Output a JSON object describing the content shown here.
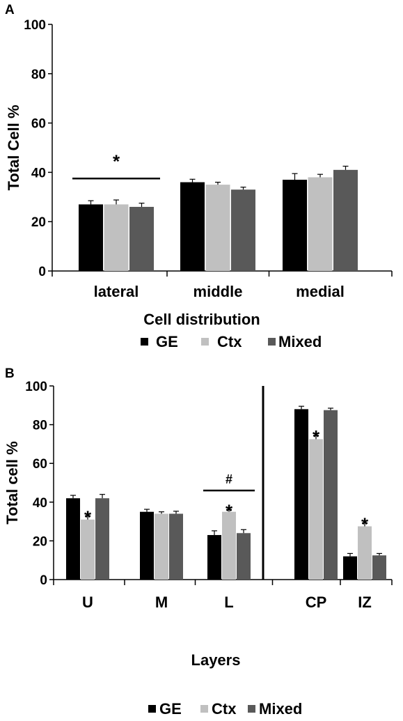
{
  "colors": {
    "GE": "#000000",
    "Ctx": "#c0c0c0",
    "Mixed": "#595959"
  },
  "chart_data": [
    {
      "type": "bar",
      "panel_label": "A",
      "categories": [
        "lateral",
        "middle",
        "medial"
      ],
      "series": [
        {
          "name": "GE",
          "values": [
            27,
            36,
            37
          ],
          "errors": [
            1.5,
            1.2,
            2.5
          ]
        },
        {
          "name": "Ctx",
          "values": [
            27,
            35,
            38
          ],
          "errors": [
            1.8,
            1.0,
            1.2
          ]
        },
        {
          "name": "Mixed",
          "values": [
            26,
            33,
            41
          ],
          "errors": [
            1.5,
            1.0,
            1.5
          ]
        }
      ],
      "ylabel": "Total Cell %",
      "xlabel": "Cell distribution",
      "ylim": [
        0,
        100
      ],
      "yticks": [
        0,
        20,
        40,
        60,
        80,
        100
      ],
      "legend": {
        "position": "bottom",
        "entries": [
          "GE",
          "Ctx",
          "Mixed"
        ]
      },
      "grid": false,
      "annotations": [
        {
          "text": "*",
          "category": "lateral",
          "bracket": true,
          "y": 37.5
        }
      ]
    },
    {
      "type": "bar",
      "panel_label": "B",
      "categories": [
        "U",
        "M",
        "L",
        "CP",
        "IZ"
      ],
      "series": [
        {
          "name": "GE",
          "values": [
            42,
            35,
            23,
            88,
            12
          ],
          "errors": [
            1.5,
            1.3,
            2.2,
            1.5,
            1.5
          ]
        },
        {
          "name": "Ctx",
          "values": [
            31,
            34,
            35,
            72.5,
            27.5
          ],
          "errors": [
            2.0,
            1.0,
            1.2,
            2.0,
            1.8
          ]
        },
        {
          "name": "Mixed",
          "values": [
            42,
            34,
            24,
            87.5,
            12.5
          ],
          "errors": [
            2.0,
            1.3,
            1.8,
            1.0,
            1.0
          ]
        }
      ],
      "ylabel": "Total cell %",
      "xlabel": "Layers",
      "ylim": [
        0,
        100
      ],
      "yticks": [
        0,
        20,
        40,
        60,
        80,
        100
      ],
      "legend": {
        "position": "bottom",
        "entries": [
          "GE",
          "Ctx",
          "Mixed"
        ]
      },
      "grid": false,
      "divider_after_category": "L",
      "annotations": [
        {
          "text": "*",
          "category": "U",
          "series": "Ctx"
        },
        {
          "text": "*",
          "category": "L",
          "series": "Ctx"
        },
        {
          "text": "#",
          "category": "L",
          "bracket": true,
          "y": 46
        },
        {
          "text": "*",
          "category": "CP",
          "series": "Ctx"
        },
        {
          "text": "*",
          "category": "IZ",
          "series": "Ctx"
        }
      ]
    }
  ]
}
